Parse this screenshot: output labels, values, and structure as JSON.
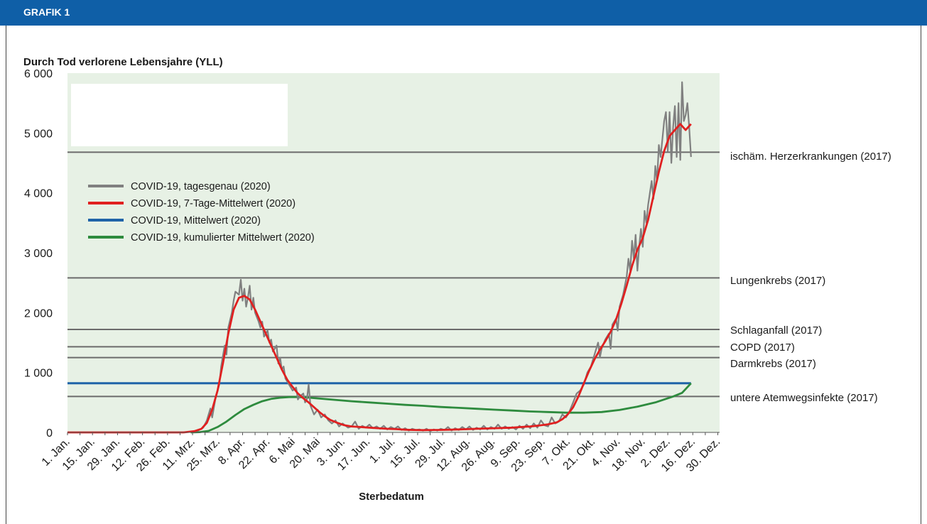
{
  "header": {
    "label": "GRAFIK 1"
  },
  "colors": {
    "header_bg": "#0f5fa7",
    "plot_bg": "#e7f1e5",
    "daily": "#808080",
    "avg7": "#e02020",
    "mean": "#1f63a8",
    "cum": "#2e8b3e",
    "ref_line": "#6b6b6b"
  },
  "chart_data": {
    "type": "line",
    "ylabel": "Durch Tod verlorene Lebensjahre (YLL)",
    "xlabel": "Sterbedatum",
    "ylim": [
      0,
      6000
    ],
    "x_days_total": 366,
    "yticks": [
      0,
      1000,
      2000,
      3000,
      4000,
      5000,
      6000
    ],
    "ytick_labels": [
      "0",
      "1 000",
      "2 000",
      "3 000",
      "4 000",
      "5 000",
      "6 000"
    ],
    "xtick_labels": [
      "1. Jan.",
      "15. Jan.",
      "29. Jan.",
      "12. Feb.",
      "26. Feb.",
      "11. Mrz.",
      "25. Mrz.",
      "8. Apr.",
      "22. Apr.",
      "6. Mai",
      "20. Mai",
      "3. Jun.",
      "17. Jun.",
      "1. Jul.",
      "15. Jul.",
      "29. Jul.",
      "12. Aug.",
      "26. Aug.",
      "9. Sep.",
      "23. Sep.",
      "7. Okt.",
      "21. Okt.",
      "4. Nov.",
      "18. Nov.",
      "2. Dez.",
      "16. Dez.",
      "30. Dez."
    ],
    "xtick_days": [
      1,
      15,
      29,
      43,
      57,
      71,
      85,
      99,
      113,
      127,
      141,
      155,
      169,
      183,
      197,
      211,
      225,
      239,
      253,
      267,
      281,
      295,
      309,
      323,
      337,
      351,
      365
    ],
    "grid": false,
    "legend_position": "top-left",
    "reference_lines": [
      {
        "name": "ischäm. Herzerkrankungen (2017)",
        "value": 4680
      },
      {
        "name": "Lungenkrebs (2017)",
        "value": 2580
      },
      {
        "name": "Schlaganfall (2017)",
        "value": 1720
      },
      {
        "name": "COPD (2017)",
        "value": 1430
      },
      {
        "name": "Darmkrebs (2017)",
        "value": 1250
      },
      {
        "name": "untere Atemwegsinfekte (2017)",
        "value": 600
      }
    ],
    "series": [
      {
        "name": "COVID-19, tagesgenau (2020)",
        "points": [
          [
            1,
            0
          ],
          [
            65,
            0
          ],
          [
            70,
            10
          ],
          [
            74,
            30
          ],
          [
            77,
            80
          ],
          [
            79,
            200
          ],
          [
            81,
            400
          ],
          [
            82,
            250
          ],
          [
            84,
            600
          ],
          [
            86,
            800
          ],
          [
            87,
            1100
          ],
          [
            89,
            1450
          ],
          [
            90,
            1300
          ],
          [
            91,
            1750
          ],
          [
            93,
            2000
          ],
          [
            94,
            2200
          ],
          [
            95,
            2350
          ],
          [
            97,
            2300
          ],
          [
            98,
            2550
          ],
          [
            99,
            2200
          ],
          [
            100,
            2400
          ],
          [
            101,
            2100
          ],
          [
            102,
            2250
          ],
          [
            103,
            2450
          ],
          [
            104,
            2050
          ],
          [
            105,
            2250
          ],
          [
            106,
            2000
          ],
          [
            108,
            1850
          ],
          [
            109,
            1750
          ],
          [
            110,
            1850
          ],
          [
            111,
            1600
          ],
          [
            113,
            1700
          ],
          [
            114,
            1500
          ],
          [
            115,
            1550
          ],
          [
            116,
            1350
          ],
          [
            118,
            1450
          ],
          [
            119,
            1150
          ],
          [
            120,
            1250
          ],
          [
            121,
            1050
          ],
          [
            122,
            1100
          ],
          [
            123,
            900
          ],
          [
            125,
            800
          ],
          [
            127,
            700
          ],
          [
            129,
            750
          ],
          [
            130,
            550
          ],
          [
            131,
            600
          ],
          [
            133,
            650
          ],
          [
            134,
            500
          ],
          [
            135,
            550
          ],
          [
            136,
            800
          ],
          [
            137,
            450
          ],
          [
            139,
            300
          ],
          [
            141,
            380
          ],
          [
            143,
            250
          ],
          [
            145,
            300
          ],
          [
            147,
            200
          ],
          [
            149,
            150
          ],
          [
            151,
            200
          ],
          [
            153,
            100
          ],
          [
            155,
            150
          ],
          [
            158,
            80
          ],
          [
            160,
            100
          ],
          [
            162,
            180
          ],
          [
            164,
            60
          ],
          [
            166,
            110
          ],
          [
            168,
            80
          ],
          [
            170,
            130
          ],
          [
            172,
            70
          ],
          [
            174,
            100
          ],
          [
            176,
            60
          ],
          [
            178,
            110
          ],
          [
            180,
            50
          ],
          [
            182,
            90
          ],
          [
            184,
            60
          ],
          [
            186,
            100
          ],
          [
            188,
            40
          ],
          [
            190,
            70
          ],
          [
            192,
            30
          ],
          [
            194,
            60
          ],
          [
            196,
            40
          ],
          [
            198,
            50
          ],
          [
            200,
            30
          ],
          [
            202,
            60
          ],
          [
            204,
            20
          ],
          [
            206,
            50
          ],
          [
            208,
            30
          ],
          [
            210,
            60
          ],
          [
            212,
            40
          ],
          [
            214,
            90
          ],
          [
            216,
            30
          ],
          [
            218,
            70
          ],
          [
            220,
            40
          ],
          [
            222,
            90
          ],
          [
            224,
            50
          ],
          [
            226,
            100
          ],
          [
            228,
            40
          ],
          [
            230,
            80
          ],
          [
            232,
            50
          ],
          [
            234,
            110
          ],
          [
            236,
            50
          ],
          [
            238,
            90
          ],
          [
            240,
            60
          ],
          [
            242,
            130
          ],
          [
            244,
            60
          ],
          [
            246,
            100
          ],
          [
            248,
            60
          ],
          [
            250,
            90
          ],
          [
            252,
            50
          ],
          [
            254,
            110
          ],
          [
            256,
            60
          ],
          [
            258,
            130
          ],
          [
            260,
            70
          ],
          [
            262,
            150
          ],
          [
            264,
            80
          ],
          [
            266,
            200
          ],
          [
            268,
            120
          ],
          [
            270,
            100
          ],
          [
            272,
            250
          ],
          [
            274,
            150
          ],
          [
            276,
            180
          ],
          [
            278,
            300
          ],
          [
            280,
            250
          ],
          [
            282,
            350
          ],
          [
            284,
            500
          ],
          [
            286,
            650
          ],
          [
            288,
            700
          ],
          [
            290,
            800
          ],
          [
            292,
            1000
          ],
          [
            294,
            1100
          ],
          [
            296,
            1300
          ],
          [
            298,
            1500
          ],
          [
            299,
            1250
          ],
          [
            300,
            1400
          ],
          [
            302,
            1550
          ],
          [
            304,
            1650
          ],
          [
            305,
            1400
          ],
          [
            306,
            1800
          ],
          [
            308,
            1900
          ],
          [
            309,
            1700
          ],
          [
            310,
            2100
          ],
          [
            312,
            2300
          ],
          [
            314,
            2600
          ],
          [
            315,
            2900
          ],
          [
            316,
            2700
          ],
          [
            317,
            3200
          ],
          [
            318,
            2900
          ],
          [
            319,
            3300
          ],
          [
            320,
            2700
          ],
          [
            321,
            3100
          ],
          [
            322,
            3400
          ],
          [
            323,
            3100
          ],
          [
            324,
            3700
          ],
          [
            325,
            3500
          ],
          [
            326,
            3800
          ],
          [
            327,
            4000
          ],
          [
            328,
            4200
          ],
          [
            329,
            3900
          ],
          [
            330,
            4450
          ],
          [
            331,
            4200
          ],
          [
            332,
            4800
          ],
          [
            333,
            4600
          ],
          [
            334,
            4900
          ],
          [
            335,
            5200
          ],
          [
            336,
            5350
          ],
          [
            337,
            4700
          ],
          [
            338,
            5350
          ],
          [
            339,
            4500
          ],
          [
            340,
            5100
          ],
          [
            341,
            5450
          ],
          [
            342,
            4600
          ],
          [
            343,
            5500
          ],
          [
            344,
            4550
          ],
          [
            345,
            5850
          ],
          [
            346,
            5200
          ],
          [
            347,
            5300
          ],
          [
            348,
            5500
          ],
          [
            349,
            5100
          ],
          [
            350,
            4600
          ]
        ]
      },
      {
        "name": "COVID-19, 7-Tage-Mittelwert (2020)",
        "points": [
          [
            1,
            0
          ],
          [
            66,
            0
          ],
          [
            72,
            20
          ],
          [
            76,
            60
          ],
          [
            79,
            160
          ],
          [
            82,
            380
          ],
          [
            85,
            700
          ],
          [
            88,
            1150
          ],
          [
            91,
            1650
          ],
          [
            94,
            2050
          ],
          [
            97,
            2250
          ],
          [
            100,
            2280
          ],
          [
            103,
            2220
          ],
          [
            106,
            2050
          ],
          [
            109,
            1850
          ],
          [
            112,
            1650
          ],
          [
            115,
            1450
          ],
          [
            118,
            1250
          ],
          [
            121,
            1050
          ],
          [
            124,
            880
          ],
          [
            127,
            760
          ],
          [
            130,
            650
          ],
          [
            133,
            570
          ],
          [
            136,
            500
          ],
          [
            139,
            420
          ],
          [
            142,
            340
          ],
          [
            145,
            270
          ],
          [
            148,
            210
          ],
          [
            152,
            160
          ],
          [
            156,
            120
          ],
          [
            160,
            100
          ],
          [
            165,
            90
          ],
          [
            170,
            80
          ],
          [
            175,
            70
          ],
          [
            180,
            60
          ],
          [
            185,
            55
          ],
          [
            190,
            45
          ],
          [
            195,
            40
          ],
          [
            200,
            38
          ],
          [
            205,
            40
          ],
          [
            210,
            42
          ],
          [
            215,
            45
          ],
          [
            220,
            50
          ],
          [
            225,
            55
          ],
          [
            230,
            60
          ],
          [
            235,
            65
          ],
          [
            240,
            70
          ],
          [
            245,
            75
          ],
          [
            250,
            80
          ],
          [
            255,
            90
          ],
          [
            260,
            100
          ],
          [
            265,
            115
          ],
          [
            270,
            135
          ],
          [
            275,
            170
          ],
          [
            278,
            220
          ],
          [
            281,
            300
          ],
          [
            284,
            420
          ],
          [
            287,
            600
          ],
          [
            290,
            820
          ],
          [
            293,
            1030
          ],
          [
            296,
            1220
          ],
          [
            299,
            1380
          ],
          [
            302,
            1520
          ],
          [
            305,
            1680
          ],
          [
            308,
            1880
          ],
          [
            311,
            2150
          ],
          [
            314,
            2450
          ],
          [
            317,
            2780
          ],
          [
            320,
            3050
          ],
          [
            323,
            3250
          ],
          [
            326,
            3550
          ],
          [
            329,
            3950
          ],
          [
            332,
            4350
          ],
          [
            335,
            4700
          ],
          [
            338,
            4950
          ],
          [
            341,
            5050
          ],
          [
            344,
            5150
          ],
          [
            347,
            5050
          ],
          [
            350,
            5150
          ]
        ]
      },
      {
        "name": "COVID-19, Mittelwert (2020)",
        "points": [
          [
            1,
            820
          ],
          [
            350,
            820
          ]
        ]
      },
      {
        "name": "COVID-19, kumulierter Mittelwert (2020)",
        "points": [
          [
            70,
            0
          ],
          [
            75,
            5
          ],
          [
            80,
            25
          ],
          [
            85,
            90
          ],
          [
            90,
            180
          ],
          [
            95,
            290
          ],
          [
            100,
            390
          ],
          [
            105,
            460
          ],
          [
            110,
            520
          ],
          [
            115,
            560
          ],
          [
            120,
            580
          ],
          [
            125,
            590
          ],
          [
            130,
            590
          ],
          [
            135,
            585
          ],
          [
            140,
            570
          ],
          [
            150,
            545
          ],
          [
            160,
            520
          ],
          [
            170,
            500
          ],
          [
            180,
            480
          ],
          [
            190,
            460
          ],
          [
            200,
            445
          ],
          [
            210,
            425
          ],
          [
            220,
            410
          ],
          [
            230,
            395
          ],
          [
            240,
            380
          ],
          [
            250,
            365
          ],
          [
            260,
            350
          ],
          [
            270,
            340
          ],
          [
            280,
            330
          ],
          [
            290,
            330
          ],
          [
            300,
            340
          ],
          [
            310,
            375
          ],
          [
            320,
            430
          ],
          [
            330,
            500
          ],
          [
            340,
            600
          ],
          [
            345,
            660
          ],
          [
            350,
            820
          ]
        ]
      }
    ]
  }
}
